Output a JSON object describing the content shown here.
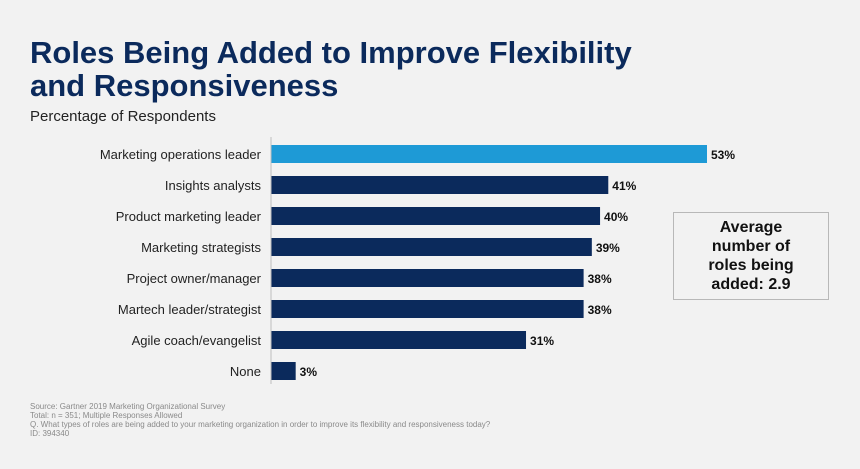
{
  "title_line1": "Roles Being Added to Improve Flexibility",
  "title_line2": "and Responsiveness",
  "subtitle": "Percentage of Respondents",
  "callout": "Average number of roles being added: 2.9",
  "colors": {
    "highlight": "#1e9ad6",
    "bar": "#0b2a5c",
    "title": "#0b2a5c",
    "background": "#f2f2f2"
  },
  "chart_data": {
    "type": "bar",
    "orientation": "horizontal",
    "categories": [
      "Marketing operations leader",
      "Insights analysts",
      "Product marketing leader",
      "Marketing strategists",
      "Project owner/manager",
      "Martech leader/strategist",
      "Agile coach/evangelist",
      "None"
    ],
    "values": [
      53,
      41,
      40,
      39,
      38,
      38,
      31,
      3
    ],
    "value_labels": [
      "53%",
      "41%",
      "40%",
      "39%",
      "38%",
      "38%",
      "31%",
      "3%"
    ],
    "highlighted_index": 0,
    "xlim": [
      0,
      60
    ],
    "grid": false,
    "legend": "none"
  },
  "footer": {
    "source": "Source: Gartner 2019 Marketing Organizational Survey",
    "total": "Total: n = 351; Multiple Responses Allowed",
    "question": "Q. What types of roles are being added to your marketing organization in order to improve its flexibility and responsiveness today?",
    "id": "ID: 394340"
  }
}
